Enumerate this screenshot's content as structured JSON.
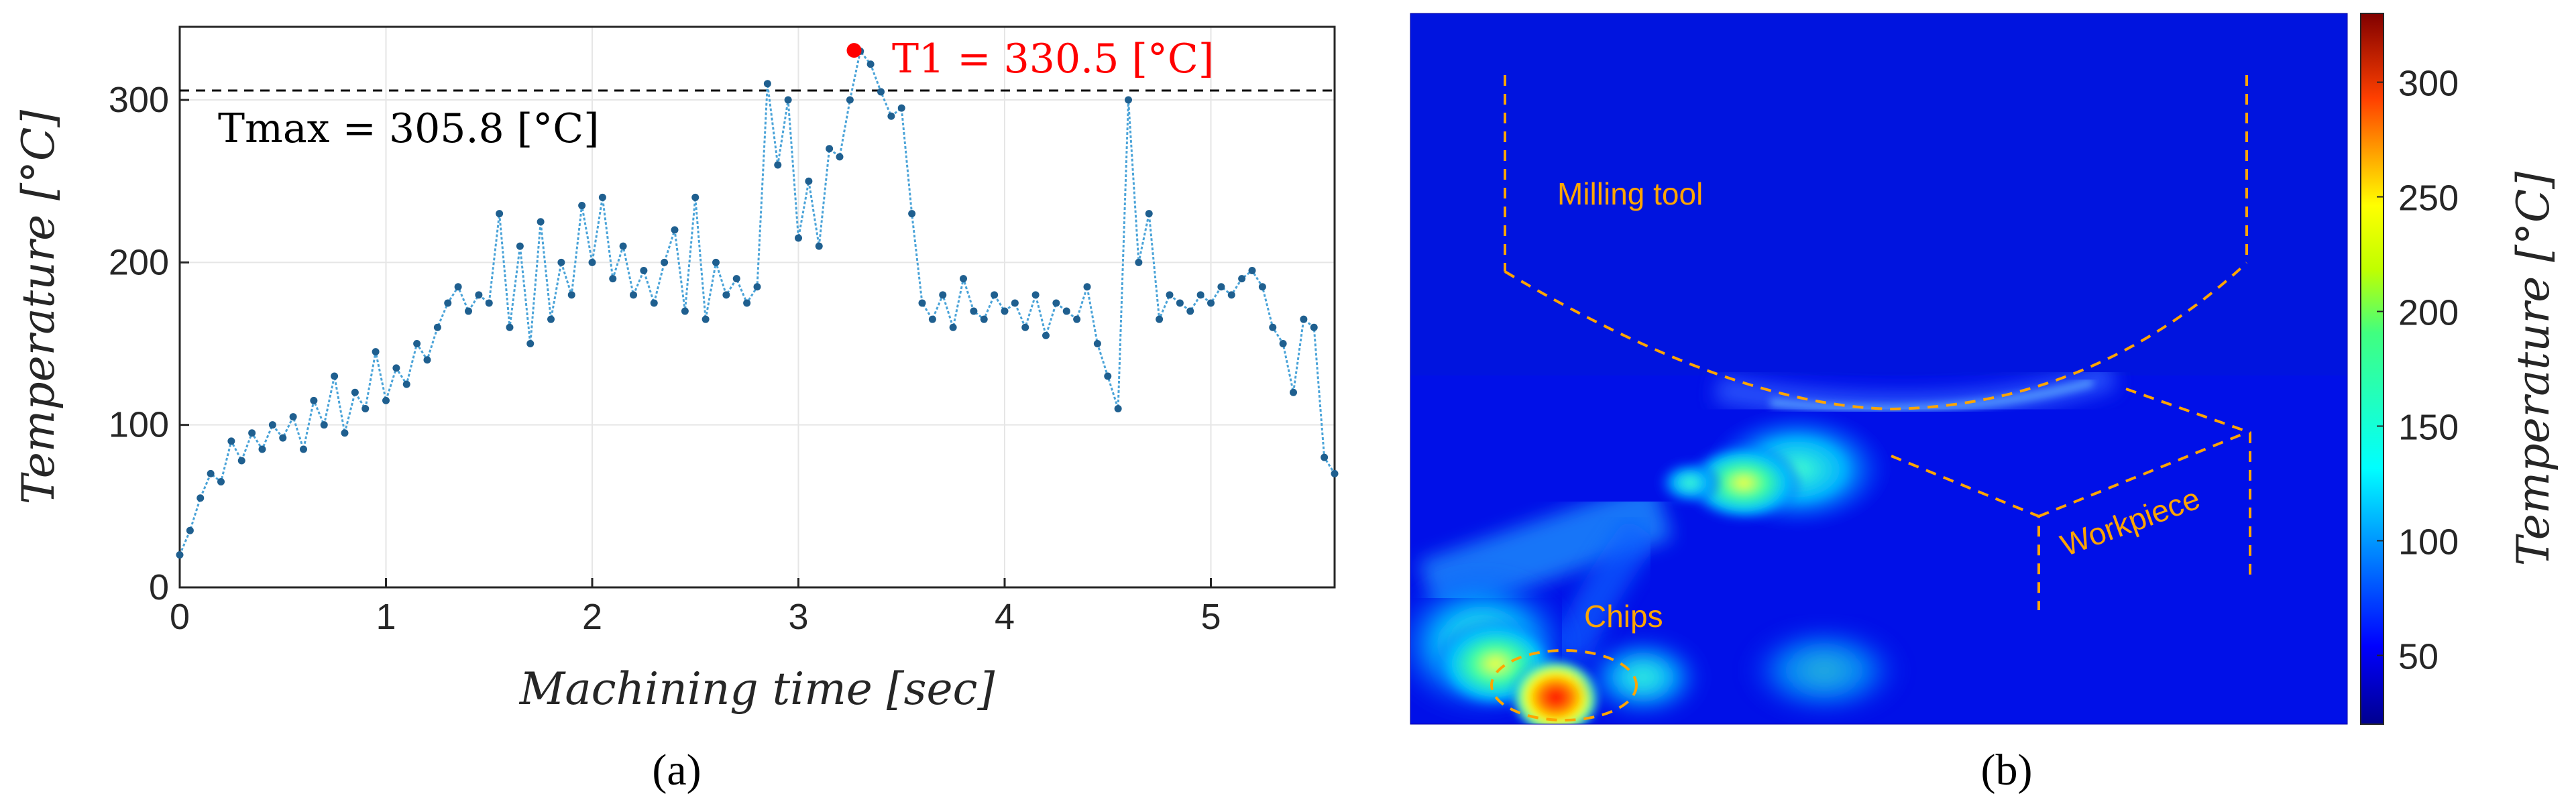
{
  "panels": {
    "a_label": "(a)",
    "b_label": "(b)"
  },
  "chart_data": [
    {
      "type": "line",
      "panel": "(a)",
      "xlabel": "Machining time [sec]",
      "ylabel": "Temperature [°C]",
      "xlim": [
        0,
        5.6
      ],
      "ylim": [
        0,
        345
      ],
      "xticks": [
        0,
        1,
        2,
        3,
        4,
        5
      ],
      "yticks": [
        0,
        100,
        200,
        300
      ],
      "grid": true,
      "series": [
        {
          "name": "Temperature",
          "color": "#1f5f8f",
          "x": [
            0,
            0.05,
            0.1,
            0.15,
            0.2,
            0.25,
            0.3,
            0.35,
            0.4,
            0.45,
            0.5,
            0.55,
            0.6,
            0.65,
            0.7,
            0.75,
            0.8,
            0.85,
            0.9,
            0.95,
            1.0,
            1.05,
            1.1,
            1.15,
            1.2,
            1.25,
            1.3,
            1.35,
            1.4,
            1.45,
            1.5,
            1.55,
            1.6,
            1.65,
            1.7,
            1.75,
            1.8,
            1.85,
            1.9,
            1.95,
            2.0,
            2.05,
            2.1,
            2.15,
            2.2,
            2.25,
            2.3,
            2.35,
            2.4,
            2.45,
            2.5,
            2.55,
            2.6,
            2.65,
            2.7,
            2.75,
            2.8,
            2.85,
            2.9,
            2.95,
            3.0,
            3.05,
            3.1,
            3.15,
            3.2,
            3.25,
            3.3,
            3.35,
            3.4,
            3.45,
            3.5,
            3.55,
            3.6,
            3.65,
            3.7,
            3.75,
            3.8,
            3.85,
            3.9,
            3.95,
            4.0,
            4.05,
            4.1,
            4.15,
            4.2,
            4.25,
            4.3,
            4.35,
            4.4,
            4.45,
            4.5,
            4.55,
            4.6,
            4.65,
            4.7,
            4.75,
            4.8,
            4.85,
            4.9,
            4.95,
            5.0,
            5.05,
            5.1,
            5.15,
            5.2,
            5.25,
            5.3,
            5.35,
            5.4,
            5.45,
            5.5,
            5.55,
            5.6
          ],
          "y": [
            20,
            35,
            55,
            70,
            65,
            90,
            78,
            95,
            85,
            100,
            92,
            105,
            85,
            115,
            100,
            130,
            95,
            120,
            110,
            145,
            115,
            135,
            125,
            150,
            140,
            160,
            175,
            185,
            170,
            180,
            175,
            230,
            160,
            210,
            150,
            225,
            165,
            200,
            180,
            235,
            200,
            240,
            190,
            210,
            180,
            195,
            175,
            200,
            220,
            170,
            240,
            165,
            200,
            180,
            190,
            175,
            185,
            310,
            260,
            300,
            215,
            250,
            210,
            270,
            265,
            300,
            330,
            322,
            305,
            290,
            295,
            230,
            175,
            165,
            180,
            160,
            190,
            170,
            165,
            180,
            170,
            175,
            160,
            180,
            155,
            175,
            170,
            165,
            185,
            150,
            130,
            110,
            300,
            200,
            230,
            165,
            180,
            175,
            170,
            180,
            175,
            185,
            180,
            190,
            195,
            185,
            160,
            150,
            120,
            165,
            160,
            80,
            70
          ]
        }
      ],
      "reference_line": {
        "value": 305.8,
        "label": "T_max = 305.8 [°C]",
        "text": "Tmax = 305.8 [°C]",
        "style": "dashed",
        "color": "#000000"
      },
      "highlight_point": {
        "x": 3.27,
        "y": 330.5,
        "text": "T1 = 330.5 [°C]",
        "color": "#ff0000"
      }
    },
    {
      "type": "heatmap",
      "panel": "(b)",
      "colorbar": {
        "label": "Temperature [°C]",
        "ticks": [
          50,
          100,
          150,
          200,
          250,
          300
        ],
        "range": [
          20,
          330
        ]
      },
      "annotations": [
        "Milling tool",
        "Workpiece",
        "Chips"
      ]
    }
  ]
}
